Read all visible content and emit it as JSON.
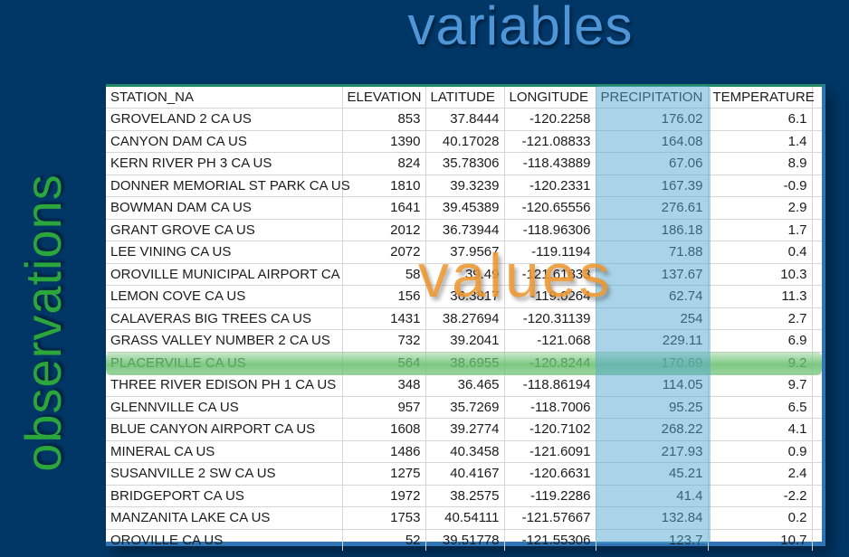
{
  "labels": {
    "variables": "variables",
    "observations": "observations",
    "values": "values"
  },
  "colors": {
    "background": "#003767",
    "variables_label": "#4E96D8",
    "observations_label": "#2BA63C",
    "values_label": "#EE9832",
    "precipitation_column_highlight": "#53A7D1",
    "highlighted_row": "#6EC373",
    "table_top_border": "#218868",
    "table_frame_border": "#2F74B5"
  },
  "table": {
    "columns": [
      "STATION_NA",
      "ELEVATION",
      "LATITUDE",
      "LONGITUDE",
      "PRECIPITATION",
      "TEMPERATURE"
    ],
    "highlighted_column": "PRECIPITATION",
    "highlighted_row_index": 11,
    "highlighted_row_station": "PLACERVILLE CA US",
    "rows": [
      [
        "GROVELAND 2 CA US",
        "853",
        "37.8444",
        "-120.2258",
        "176.02",
        "6.1"
      ],
      [
        "CANYON DAM CA US",
        "1390",
        "40.17028",
        "-121.08833",
        "164.08",
        "1.4"
      ],
      [
        "KERN RIVER PH 3 CA US",
        "824",
        "35.78306",
        "-118.43889",
        "67.06",
        "8.9"
      ],
      [
        "DONNER MEMORIAL ST PARK CA US",
        "1810",
        "39.3239",
        "-120.2331",
        "167.39",
        "-0.9"
      ],
      [
        "BOWMAN DAM CA US",
        "1641",
        "39.45389",
        "-120.65556",
        "276.61",
        "2.9"
      ],
      [
        "GRANT GROVE CA US",
        "2012",
        "36.73944",
        "-118.96306",
        "186.18",
        "1.7"
      ],
      [
        "LEE VINING CA US",
        "2072",
        "37.9567",
        "-119.1194",
        "71.88",
        "0.4"
      ],
      [
        "OROVILLE MUNICIPAL AIRPORT CA",
        "58",
        "39.49",
        "-121.61833",
        "137.67",
        "10.3"
      ],
      [
        "LEMON COVE CA US",
        "156",
        "36.3817",
        "-119.0264",
        "62.74",
        "11.3"
      ],
      [
        "CALAVERAS BIG TREES CA US",
        "1431",
        "38.27694",
        "-120.31139",
        "254",
        "2.7"
      ],
      [
        "GRASS VALLEY NUMBER 2 CA US",
        "732",
        "39.2041",
        "-121.068",
        "229.11",
        "6.9"
      ],
      [
        "PLACERVILLE CA US",
        "564",
        "38.6955",
        "-120.8244",
        "170.69",
        "9.2"
      ],
      [
        "THREE RIVER EDISON PH 1 CA US",
        "348",
        "36.465",
        "-118.86194",
        "114.05",
        "9.7"
      ],
      [
        "GLENNVILLE CA US",
        "957",
        "35.7269",
        "-118.7006",
        "95.25",
        "6.5"
      ],
      [
        "BLUE CANYON AIRPORT CA US",
        "1608",
        "39.2774",
        "-120.7102",
        "268.22",
        "4.1"
      ],
      [
        "MINERAL CA US",
        "1486",
        "40.3458",
        "-121.6091",
        "217.93",
        "0.9"
      ],
      [
        "SUSANVILLE 2 SW CA US",
        "1275",
        "40.4167",
        "-120.6631",
        "45.21",
        "2.4"
      ],
      [
        "BRIDGEPORT CA US",
        "1972",
        "38.2575",
        "-119.2286",
        "41.4",
        "-2.2"
      ],
      [
        "MANZANITA LAKE CA US",
        "1753",
        "40.54111",
        "-121.57667",
        "132.84",
        "0.2"
      ],
      [
        "OROVILLE CA US",
        "52",
        "39.51778",
        "-121.55306",
        "123.7",
        "10.7"
      ]
    ]
  }
}
